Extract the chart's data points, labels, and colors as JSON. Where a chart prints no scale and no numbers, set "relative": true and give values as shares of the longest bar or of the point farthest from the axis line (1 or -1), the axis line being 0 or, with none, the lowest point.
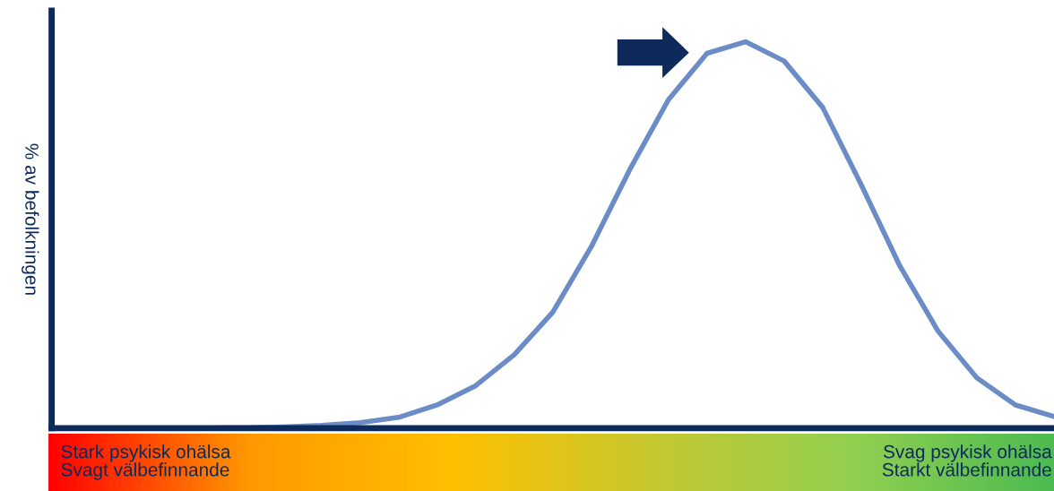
{
  "chart_data": {
    "type": "line",
    "relative": true,
    "ylabel": "% av befolkningen",
    "categories": [
      null,
      null,
      null,
      null,
      null,
      null,
      null,
      null,
      null,
      null,
      null,
      null,
      null,
      null,
      null,
      null,
      null,
      null,
      null,
      null,
      null,
      null,
      null,
      null,
      null,
      null,
      null
    ],
    "series": [
      {
        "color": "#6b8cc7",
        "values": [
          0,
          0,
          0,
          0,
          0,
          0.001,
          0.003,
          0.007,
          0.014,
          0.028,
          0.06,
          0.11,
          0.19,
          0.3,
          0.47,
          0.67,
          0.85,
          0.97,
          1.0,
          0.95,
          0.83,
          0.63,
          0.42,
          0.25,
          0.13,
          0.06,
          0.03
        ]
      }
    ],
    "annotations": [
      "Stark psykisk ohälsa\nSvagt välbefinnande",
      "Svag psykisk ohälsa\nStarkt välbefinnande"
    ],
    "grid": false,
    "legend": false,
    "marker": "none",
    "line_style": "solid"
  }
}
